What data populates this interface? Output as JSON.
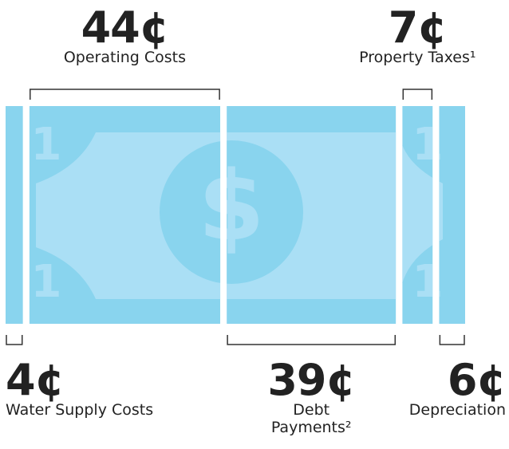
{
  "chart_data": {
    "type": "bill",
    "categories": [
      "Water Supply Costs",
      "Operating Costs",
      "Debt Payments²",
      "Property Taxes¹",
      "Depreciation"
    ],
    "values": [
      4,
      44,
      39,
      7,
      6
    ],
    "value_labels": [
      "4¢",
      "44¢",
      "39¢",
      "7¢",
      "6¢"
    ],
    "color": "#89d4ee"
  }
}
